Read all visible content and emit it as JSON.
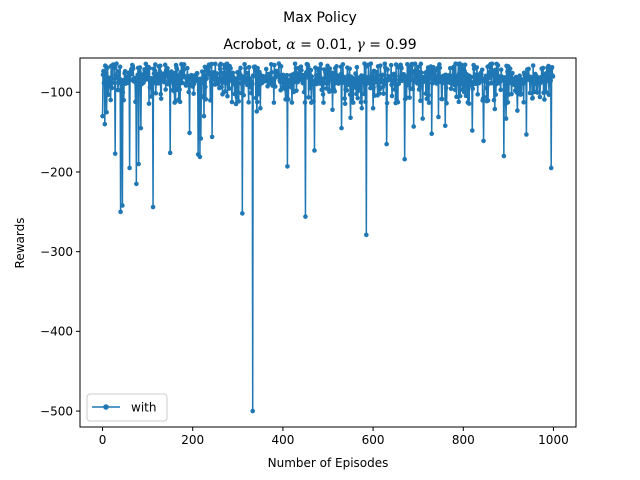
{
  "figure": {
    "suptitle": "Max Policy",
    "title_prefix": "Acrobot, ",
    "alpha_symbol": "α",
    "alpha_value": " = 0.01, ",
    "gamma_symbol": "γ",
    "gamma_value": " = 0.99"
  },
  "chart_data": {
    "type": "line",
    "title": "Acrobot, α = 0.01, γ = 0.99",
    "suptitle": "Max Policy",
    "xlabel": "Number of Episodes",
    "ylabel": "Rewards",
    "xlim": [
      -50,
      1050
    ],
    "ylim": [
      -520,
      -57
    ],
    "xticks": [
      0,
      200,
      400,
      600,
      800,
      1000
    ],
    "xtick_labels": [
      "0",
      "200",
      "400",
      "600",
      "800",
      "1000"
    ],
    "yticks": [
      -500,
      -400,
      -300,
      -200,
      -100
    ],
    "ytick_labels": [
      "−500",
      "−400",
      "−300",
      "−200",
      "−100"
    ],
    "grid": false,
    "legend_position": "lower-left",
    "baseline": {
      "low": -90,
      "high": -64
    },
    "series": [
      {
        "name": "with",
        "color": "#1f77b4",
        "marker": "circle",
        "n_episodes": 1000,
        "dips": [
          [
            0,
            -130
          ],
          [
            5,
            -140
          ],
          [
            9,
            -125
          ],
          [
            28,
            -177
          ],
          [
            40,
            -250
          ],
          [
            44,
            -242
          ],
          [
            60,
            -195
          ],
          [
            75,
            -215
          ],
          [
            80,
            -190
          ],
          [
            85,
            -145
          ],
          [
            112,
            -244
          ],
          [
            130,
            -108
          ],
          [
            150,
            -176
          ],
          [
            172,
            -112
          ],
          [
            193,
            -151
          ],
          [
            212,
            -178
          ],
          [
            216,
            -181
          ],
          [
            218,
            -158
          ],
          [
            225,
            -130
          ],
          [
            243,
            -156
          ],
          [
            310,
            -252
          ],
          [
            333,
            -500
          ],
          [
            342,
            -124
          ],
          [
            350,
            -120
          ],
          [
            380,
            -113
          ],
          [
            410,
            -193
          ],
          [
            430,
            -98
          ],
          [
            450,
            -256
          ],
          [
            470,
            -173
          ],
          [
            490,
            -113
          ],
          [
            510,
            -122
          ],
          [
            530,
            -145
          ],
          [
            550,
            -132
          ],
          [
            575,
            -120
          ],
          [
            585,
            -279
          ],
          [
            600,
            -120
          ],
          [
            630,
            -165
          ],
          [
            670,
            -184
          ],
          [
            690,
            -143
          ],
          [
            710,
            -133
          ],
          [
            730,
            -152
          ],
          [
            745,
            -131
          ],
          [
            760,
            -142
          ],
          [
            790,
            -112
          ],
          [
            820,
            -148
          ],
          [
            845,
            -161
          ],
          [
            870,
            -121
          ],
          [
            890,
            -180
          ],
          [
            895,
            -133
          ],
          [
            920,
            -123
          ],
          [
            940,
            -153
          ],
          [
            980,
            -109
          ],
          [
            995,
            -195
          ]
        ]
      }
    ]
  }
}
